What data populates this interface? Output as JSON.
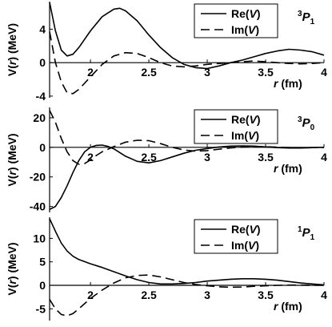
{
  "chart_data": [
    {
      "type": "line",
      "state_label": {
        "base": "3",
        "letter": "P",
        "sub": "1"
      },
      "ylabel": {
        "pre": "V(",
        "var": "r",
        "post": ")  (MeV)"
      },
      "xlabel": {
        "var": "r",
        "unit": "(fm)"
      },
      "xlim": [
        1.65,
        4.0
      ],
      "ylim": [
        -4.2,
        7.3
      ],
      "xticks": [
        2,
        2.5,
        3,
        3.5,
        4
      ],
      "xtick_labels": [
        "2",
        "2.5",
        "3",
        "3.5",
        "4"
      ],
      "yticks": [
        -4,
        0,
        4
      ],
      "ytick_labels": [
        "-4",
        "0",
        "4"
      ],
      "legend": [
        {
          "pre": "Re(",
          "var": "V",
          "post": ")"
        },
        {
          "pre": "Im(",
          "var": "V",
          "post": ")"
        }
      ],
      "series": [
        {
          "name": "Re(V)",
          "style": "solid",
          "x": [
            1.65,
            1.7,
            1.75,
            1.8,
            1.85,
            1.9,
            2.0,
            2.1,
            2.2,
            2.25,
            2.3,
            2.4,
            2.5,
            2.6,
            2.7,
            2.8,
            2.9,
            3.0,
            3.1,
            3.2,
            3.3,
            3.4,
            3.5,
            3.6,
            3.7,
            3.8,
            3.9,
            4.0
          ],
          "y": [
            7.2,
            3.8,
            1.5,
            0.8,
            1.0,
            1.8,
            3.8,
            5.5,
            6.4,
            6.5,
            6.2,
            5.0,
            3.3,
            1.8,
            0.6,
            -0.2,
            -0.6,
            -0.7,
            -0.4,
            0.0,
            0.3,
            0.7,
            1.1,
            1.4,
            1.6,
            1.5,
            1.3,
            0.9
          ]
        },
        {
          "name": "Im(V)",
          "style": "dashed",
          "x": [
            1.65,
            1.7,
            1.75,
            1.8,
            1.85,
            1.9,
            2.0,
            2.1,
            2.2,
            2.3,
            2.4,
            2.5,
            2.6,
            2.7,
            2.8,
            2.9,
            3.0,
            3.1,
            3.2,
            3.3,
            3.4,
            3.5,
            3.6,
            3.7,
            3.8,
            3.9,
            4.0
          ],
          "y": [
            3.7,
            0.0,
            -2.3,
            -3.6,
            -3.7,
            -3.2,
            -1.7,
            -0.2,
            0.8,
            1.2,
            1.1,
            0.6,
            0.0,
            -0.4,
            -0.5,
            -0.4,
            -0.2,
            -0.1,
            0.0,
            0.1,
            0.2,
            0.1,
            0.0,
            -0.1,
            -0.15,
            -0.1,
            0.0
          ]
        }
      ]
    },
    {
      "type": "line",
      "state_label": {
        "base": "3",
        "letter": "P",
        "sub": "0"
      },
      "ylabel": {
        "pre": "V(",
        "var": "r",
        "post": ")  (MeV)"
      },
      "xlabel": {
        "var": "r",
        "unit": "(fm)"
      },
      "xlim": [
        1.65,
        4.0
      ],
      "ylim": [
        -44,
        27
      ],
      "xticks": [
        2,
        2.5,
        3,
        3.5,
        4
      ],
      "xtick_labels": [
        "2",
        "2.5",
        "3",
        "3.5",
        "4"
      ],
      "yticks": [
        -40,
        -20,
        0,
        20
      ],
      "ytick_labels": [
        "-40",
        "-20",
        "0",
        "20"
      ],
      "legend": [
        {
          "pre": "Re(",
          "var": "V",
          "post": ")"
        },
        {
          "pre": "Im(",
          "var": "V",
          "post": ")"
        }
      ],
      "series": [
        {
          "name": "Re(V)",
          "style": "solid",
          "x": [
            1.65,
            1.7,
            1.75,
            1.8,
            1.85,
            1.9,
            1.95,
            2.0,
            2.05,
            2.1,
            2.15,
            2.2,
            2.3,
            2.4,
            2.5,
            2.6,
            2.7,
            2.8,
            2.9,
            3.0,
            3.1,
            3.2,
            3.3,
            3.4,
            3.5,
            3.6,
            3.7,
            3.8,
            3.9,
            4.0
          ],
          "y": [
            -42,
            -40,
            -34,
            -26,
            -17,
            -9,
            -3,
            0,
            1.3,
            1.5,
            0.6,
            -1.0,
            -6,
            -9.5,
            -10.5,
            -9,
            -6.5,
            -4,
            -2,
            -0.8,
            0.2,
            0.8,
            1.0,
            0.8,
            0.3,
            -0.2,
            -0.5,
            -0.5,
            -0.2,
            0.0
          ]
        },
        {
          "name": "Im(V)",
          "style": "dashed",
          "x": [
            1.65,
            1.7,
            1.75,
            1.8,
            1.85,
            1.9,
            1.95,
            2.0,
            2.05,
            2.1,
            2.2,
            2.3,
            2.4,
            2.5,
            2.6,
            2.7,
            2.8,
            2.9,
            3.0,
            3.1,
            3.2,
            3.3,
            3.4,
            3.5,
            3.6,
            3.7,
            3.8,
            3.9,
            4.0
          ],
          "y": [
            25,
            17,
            6,
            -3,
            -9,
            -11.5,
            -11,
            -8.5,
            -5.5,
            -3,
            0.5,
            3.5,
            4.8,
            4.5,
            2.5,
            0,
            -1.8,
            -2.6,
            -2.2,
            -1.3,
            -0.4,
            0.2,
            0.5,
            0.4,
            0.1,
            -0.2,
            -0.3,
            -0.2,
            -0.1
          ]
        }
      ]
    },
    {
      "type": "line",
      "state_label": {
        "base": "1",
        "letter": "P",
        "sub": "1"
      },
      "ylabel": {
        "pre": "V(",
        "var": "r",
        "post": ")  (MeV)"
      },
      "xlabel": {
        "var": "r",
        "unit": "(fm)"
      },
      "xlim": [
        1.65,
        4.0
      ],
      "ylim": [
        -7.5,
        14.5
      ],
      "xticks": [
        2,
        2.5,
        3,
        3.5,
        4
      ],
      "xtick_labels": [
        "2",
        "2.5",
        "3",
        "3.5",
        "4"
      ],
      "yticks": [
        -5,
        0,
        5,
        10
      ],
      "ytick_labels": [
        "-5",
        "0",
        "5",
        "10"
      ],
      "legend": [
        {
          "pre": "Re(",
          "var": "V",
          "post": ")"
        },
        {
          "pre": "Im(",
          "var": "V",
          "post": ")"
        }
      ],
      "series": [
        {
          "name": "Re(V)",
          "style": "solid",
          "x": [
            1.65,
            1.7,
            1.75,
            1.8,
            1.85,
            1.9,
            2.0,
            2.1,
            2.2,
            2.3,
            2.4,
            2.5,
            2.6,
            2.7,
            2.8,
            2.9,
            3.0,
            3.1,
            3.2,
            3.3,
            3.4,
            3.5,
            3.6,
            3.7,
            3.8,
            3.9,
            4.0
          ],
          "y": [
            14.2,
            11.5,
            9.0,
            7.3,
            6.2,
            5.5,
            4.6,
            3.8,
            2.9,
            2.0,
            1.2,
            0.6,
            0.3,
            0.3,
            0.4,
            0.6,
            0.9,
            1.1,
            1.3,
            1.4,
            1.4,
            1.3,
            1.1,
            0.8,
            0.5,
            0.3,
            0.1
          ]
        },
        {
          "name": "Im(V)",
          "style": "dashed",
          "x": [
            1.65,
            1.7,
            1.75,
            1.8,
            1.85,
            1.9,
            2.0,
            2.1,
            2.2,
            2.3,
            2.4,
            2.5,
            2.6,
            2.7,
            2.8,
            2.9,
            3.0,
            3.1,
            3.2,
            3.3,
            3.4,
            3.5,
            3.6,
            3.7,
            3.8,
            3.9,
            4.0
          ],
          "y": [
            -3.0,
            -5.0,
            -6.2,
            -6.5,
            -6.0,
            -5.0,
            -2.8,
            -1.0,
            0.5,
            1.6,
            2.1,
            2.2,
            1.8,
            1.2,
            0.6,
            0.2,
            -0.1,
            -0.3,
            -0.4,
            -0.35,
            -0.2,
            -0.1,
            0.0,
            0.05,
            0.05,
            0.0,
            0.0
          ]
        }
      ]
    }
  ]
}
